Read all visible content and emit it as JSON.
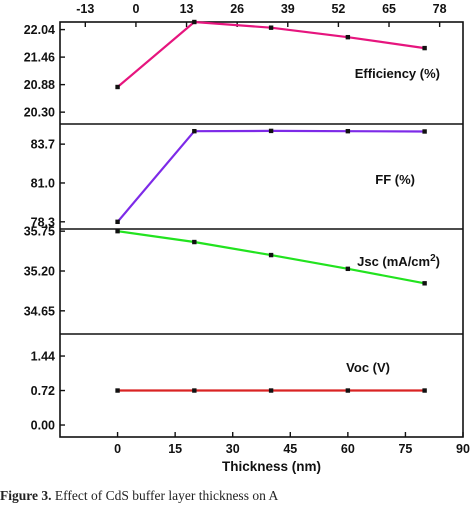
{
  "chart_data": {
    "type": "line",
    "x_axis": {
      "label": "Thickness (nm)",
      "range": [
        -15,
        90
      ],
      "ticks": [
        0,
        15,
        30,
        45,
        60,
        75,
        90
      ]
    },
    "top_axis": {
      "range": [
        -19.5,
        84
      ],
      "ticks": [
        "-13",
        "0",
        "13",
        "26",
        "39",
        "52",
        "65",
        "78"
      ]
    },
    "x": [
      0,
      20,
      40,
      60,
      80
    ],
    "panels": [
      {
        "label": "Efficiency (%)",
        "color": "#e6157e",
        "ylim": [
          20.05,
          22.2
        ],
        "yticks": [
          "20.30",
          "20.88",
          "21.46",
          "22.04"
        ],
        "values": [
          20.83,
          22.2,
          22.08,
          21.88,
          21.65
        ]
      },
      {
        "label": "FF (%)",
        "color": "#7d2ae8",
        "ylim": [
          77.8,
          85.1
        ],
        "yticks": [
          "78.3",
          "81.0",
          "83.7"
        ],
        "values": [
          78.3,
          84.6,
          84.62,
          84.6,
          84.58
        ]
      },
      {
        "label": "Jsc (mA/cm",
        "label_sup": "2",
        "label_close": ")",
        "color": "#22e31f",
        "ylim": [
          34.33,
          35.78
        ],
        "yticks": [
          "34.65",
          "35.20",
          "35.75"
        ],
        "values": [
          35.75,
          35.6,
          35.42,
          35.23,
          35.03
        ]
      },
      {
        "label": "Voc (V)",
        "color": "#d92323",
        "ylim": [
          -0.25,
          1.9
        ],
        "yticks": [
          "0.00",
          "0.72",
          "1.44"
        ],
        "values": [
          0.72,
          0.72,
          0.72,
          0.72,
          0.72
        ]
      }
    ]
  },
  "caption": {
    "prefix": "Figure 3.",
    "text": " Effect of CdS buffer layer thickness on A"
  }
}
